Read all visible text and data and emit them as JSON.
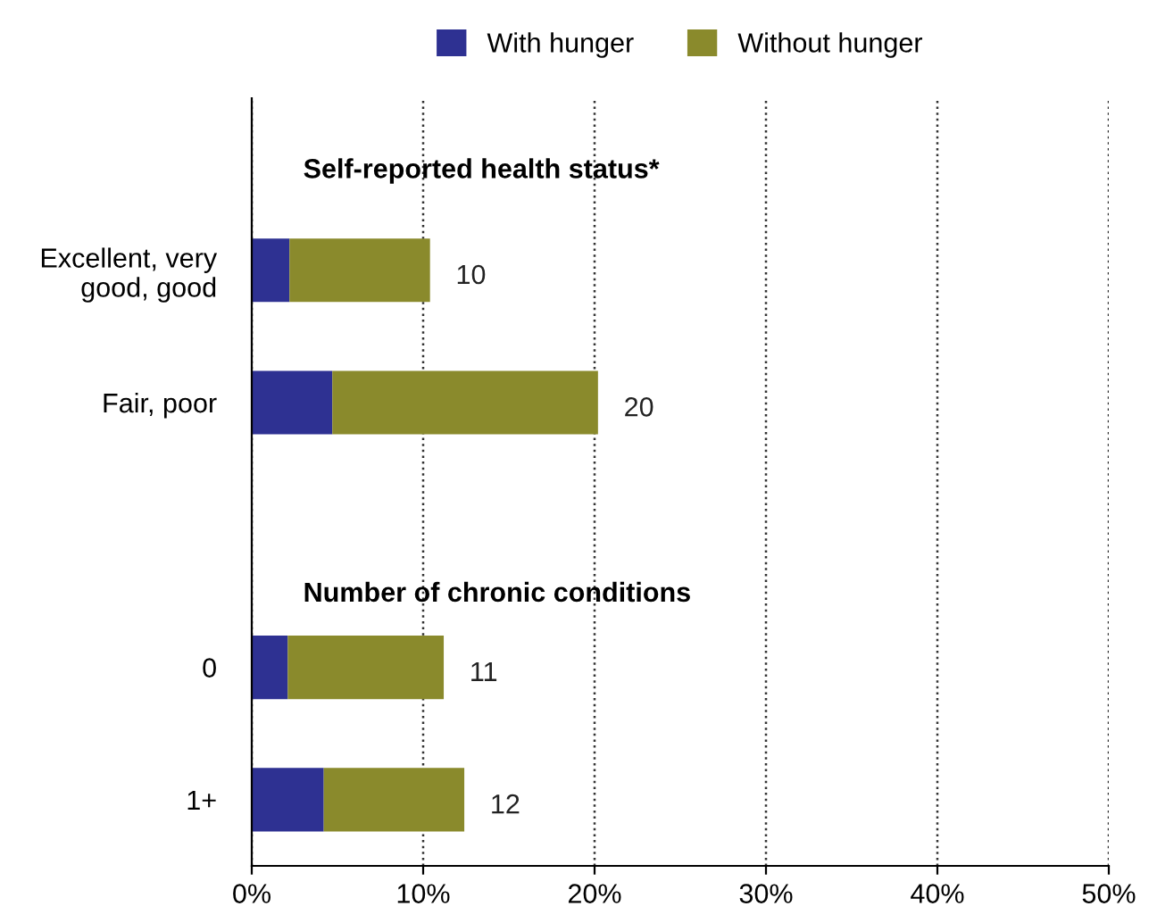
{
  "chart_data": {
    "type": "bar",
    "orientation": "horizontal",
    "stacked": true,
    "categories": [
      "Excellent, very\ngood, good",
      "Fair, poor",
      null,
      "0",
      "1+"
    ],
    "series": [
      {
        "name": "With hunger",
        "color": "#2e3192",
        "values": [
          2.2,
          4.7,
          null,
          2.1,
          4.2
        ]
      },
      {
        "name": "Without hunger",
        "color": "#8a8a2c",
        "values": [
          8.2,
          15.5,
          null,
          9.1,
          8.2
        ]
      }
    ],
    "totals": [
      "10",
      "20",
      null,
      "11",
      "12"
    ],
    "annotations": [
      "Self-reported health status*",
      "Number of chronic conditions"
    ],
    "xlim": [
      0,
      50
    ],
    "xticks": [
      {
        "value": 0,
        "label": "0%"
      },
      {
        "value": 10,
        "label": "10%"
      },
      {
        "value": 20,
        "label": "20%"
      },
      {
        "value": 30,
        "label": "30%"
      },
      {
        "value": 40,
        "label": "40%"
      },
      {
        "value": 50,
        "label": "50%"
      }
    ],
    "grid": "x",
    "legend": "top"
  }
}
